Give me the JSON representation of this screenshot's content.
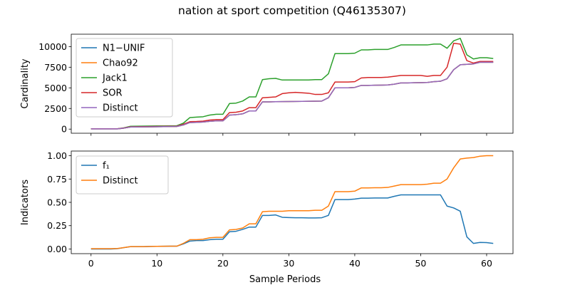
{
  "figure": {
    "title": "nation at sport competition (Q46135307)"
  },
  "chart_data": [
    {
      "type": "line",
      "title": "",
      "xlabel": "",
      "ylabel": "Cardinality",
      "xlim": [
        -3,
        64
      ],
      "ylim": [
        -500,
        11500
      ],
      "xticks": [
        0,
        10,
        20,
        30,
        40,
        50,
        60
      ],
      "show_x_tick_labels": false,
      "yticks": [
        0,
        2500,
        5000,
        7500,
        10000
      ],
      "ytick_labels": [
        "0",
        "2500",
        "5000",
        "7500",
        "10000"
      ],
      "grid": false,
      "legend": "top-left",
      "x": [
        0,
        1,
        2,
        3,
        4,
        5,
        6,
        7,
        8,
        9,
        10,
        11,
        12,
        13,
        14,
        15,
        16,
        17,
        18,
        19,
        20,
        21,
        22,
        23,
        24,
        25,
        26,
        27,
        28,
        29,
        30,
        31,
        32,
        33,
        34,
        35,
        36,
        37,
        38,
        39,
        40,
        41,
        42,
        43,
        44,
        45,
        46,
        47,
        48,
        49,
        50,
        51,
        52,
        53,
        54,
        55,
        56,
        57,
        58,
        59,
        60,
        61
      ],
      "series": [
        {
          "name": "N1−UNIF",
          "color": "#1f77b4",
          "values": [
            30,
            30,
            30,
            30,
            30,
            120,
            250,
            260,
            270,
            280,
            290,
            300,
            310,
            320,
            500,
            800,
            820,
            860,
            950,
            1000,
            1000,
            1700,
            1750,
            1850,
            2200,
            2200,
            3300,
            3300,
            3320,
            3330,
            3340,
            3350,
            3360,
            3370,
            3380,
            3400,
            3800,
            5000,
            5000,
            5000,
            5050,
            5300,
            5300,
            5320,
            5330,
            5350,
            5450,
            5600,
            5600,
            5620,
            5630,
            5650,
            5750,
            5800,
            6100,
            7200,
            7800,
            7850,
            7900,
            8100,
            8100,
            8100
          ]
        },
        {
          "name": "Chao92",
          "color": "#ff7f0e",
          "values": [
            30,
            30,
            30,
            30,
            30,
            120,
            250,
            260,
            270,
            280,
            290,
            300,
            310,
            320,
            500,
            800,
            820,
            860,
            950,
            1000,
            1000,
            1700,
            1750,
            1850,
            2200,
            2200,
            3300,
            3300,
            3320,
            3330,
            3340,
            3350,
            3360,
            3370,
            3380,
            3400,
            3800,
            5000,
            5000,
            5000,
            5050,
            5300,
            5300,
            5320,
            5330,
            5350,
            5450,
            5600,
            5600,
            5620,
            5630,
            5650,
            5750,
            5800,
            6100,
            7200,
            7800,
            7850,
            7900,
            8100,
            8100,
            8100
          ]
        },
        {
          "name": "Jack1",
          "color": "#2ca02c",
          "values": [
            40,
            40,
            40,
            40,
            40,
            160,
            340,
            350,
            360,
            370,
            380,
            390,
            400,
            410,
            720,
            1400,
            1450,
            1500,
            1700,
            1800,
            1800,
            3100,
            3150,
            3400,
            3900,
            3900,
            6000,
            6100,
            6150,
            5950,
            5950,
            5950,
            5950,
            5950,
            6000,
            6000,
            6700,
            9150,
            9150,
            9150,
            9200,
            9600,
            9600,
            9650,
            9650,
            9650,
            9900,
            10200,
            10200,
            10200,
            10200,
            10200,
            10300,
            10300,
            9800,
            10700,
            11000,
            9000,
            8500,
            8650,
            8650,
            8550
          ]
        },
        {
          "name": "SOR",
          "color": "#d62728",
          "values": [
            35,
            35,
            35,
            35,
            35,
            140,
            280,
            290,
            300,
            310,
            320,
            330,
            340,
            350,
            580,
            900,
            920,
            970,
            1100,
            1150,
            1150,
            2000,
            2050,
            2200,
            2600,
            2600,
            3800,
            3850,
            3900,
            4300,
            4400,
            4450,
            4400,
            4350,
            4200,
            4200,
            4400,
            5700,
            5700,
            5700,
            5750,
            6200,
            6250,
            6250,
            6250,
            6300,
            6400,
            6500,
            6500,
            6500,
            6500,
            6400,
            6500,
            6500,
            7500,
            10400,
            10300,
            8300,
            8000,
            8200,
            8200,
            8200
          ]
        },
        {
          "name": "Distinct",
          "color": "#9467bd",
          "values": [
            30,
            30,
            30,
            30,
            30,
            120,
            250,
            260,
            270,
            280,
            290,
            300,
            310,
            320,
            500,
            800,
            820,
            860,
            950,
            1000,
            1000,
            1700,
            1750,
            1850,
            2200,
            2200,
            3300,
            3300,
            3320,
            3330,
            3340,
            3350,
            3360,
            3370,
            3380,
            3400,
            3800,
            5000,
            5000,
            5000,
            5050,
            5300,
            5300,
            5320,
            5330,
            5350,
            5450,
            5600,
            5600,
            5620,
            5630,
            5650,
            5750,
            5800,
            6100,
            7200,
            7800,
            7850,
            7900,
            8100,
            8100,
            8100
          ]
        }
      ]
    },
    {
      "type": "line",
      "title": "",
      "xlabel": "Sample Periods",
      "ylabel": "Indicators",
      "xlim": [
        -3,
        64
      ],
      "ylim": [
        -0.05,
        1.05
      ],
      "xticks": [
        0,
        10,
        20,
        30,
        40,
        50,
        60
      ],
      "xtick_labels": [
        "0",
        "10",
        "20",
        "30",
        "40",
        "50",
        "60"
      ],
      "yticks": [
        0,
        0.25,
        0.5,
        0.75,
        1.0
      ],
      "ytick_labels": [
        "0.00",
        "0.25",
        "0.50",
        "0.75",
        "1.00"
      ],
      "grid": false,
      "legend": "top-left",
      "x": [
        0,
        1,
        2,
        3,
        4,
        5,
        6,
        7,
        8,
        9,
        10,
        11,
        12,
        13,
        14,
        15,
        16,
        17,
        18,
        19,
        20,
        21,
        22,
        23,
        24,
        25,
        26,
        27,
        28,
        29,
        30,
        31,
        32,
        33,
        34,
        35,
        36,
        37,
        38,
        39,
        40,
        41,
        42,
        43,
        44,
        45,
        46,
        47,
        48,
        49,
        50,
        51,
        52,
        53,
        54,
        55,
        56,
        57,
        58,
        59,
        60,
        61
      ],
      "series": [
        {
          "name": "f₁",
          "color": "#1f77b4",
          "values": [
            0.0,
            0.0,
            0.0,
            0.0,
            0.003,
            0.015,
            0.025,
            0.025,
            0.025,
            0.027,
            0.028,
            0.029,
            0.03,
            0.03,
            0.055,
            0.085,
            0.09,
            0.09,
            0.1,
            0.105,
            0.105,
            0.185,
            0.19,
            0.21,
            0.235,
            0.235,
            0.36,
            0.36,
            0.365,
            0.34,
            0.337,
            0.335,
            0.335,
            0.333,
            0.333,
            0.335,
            0.36,
            0.53,
            0.53,
            0.53,
            0.535,
            0.545,
            0.545,
            0.547,
            0.547,
            0.547,
            0.565,
            0.58,
            0.58,
            0.58,
            0.58,
            0.58,
            0.58,
            0.58,
            0.46,
            0.44,
            0.405,
            0.13,
            0.06,
            0.07,
            0.068,
            0.06
          ]
        },
        {
          "name": "Distinct",
          "color": "#ff7f0e",
          "values": [
            0.003,
            0.003,
            0.003,
            0.003,
            0.005,
            0.015,
            0.025,
            0.025,
            0.025,
            0.027,
            0.028,
            0.029,
            0.03,
            0.03,
            0.06,
            0.1,
            0.1,
            0.105,
            0.12,
            0.125,
            0.125,
            0.205,
            0.21,
            0.225,
            0.27,
            0.27,
            0.4,
            0.405,
            0.405,
            0.405,
            0.41,
            0.41,
            0.41,
            0.41,
            0.415,
            0.415,
            0.46,
            0.615,
            0.615,
            0.615,
            0.62,
            0.655,
            0.655,
            0.657,
            0.657,
            0.66,
            0.675,
            0.69,
            0.69,
            0.69,
            0.69,
            0.695,
            0.705,
            0.705,
            0.75,
            0.87,
            0.965,
            0.975,
            0.98,
            0.995,
            1.0,
            1.0
          ]
        }
      ]
    }
  ]
}
